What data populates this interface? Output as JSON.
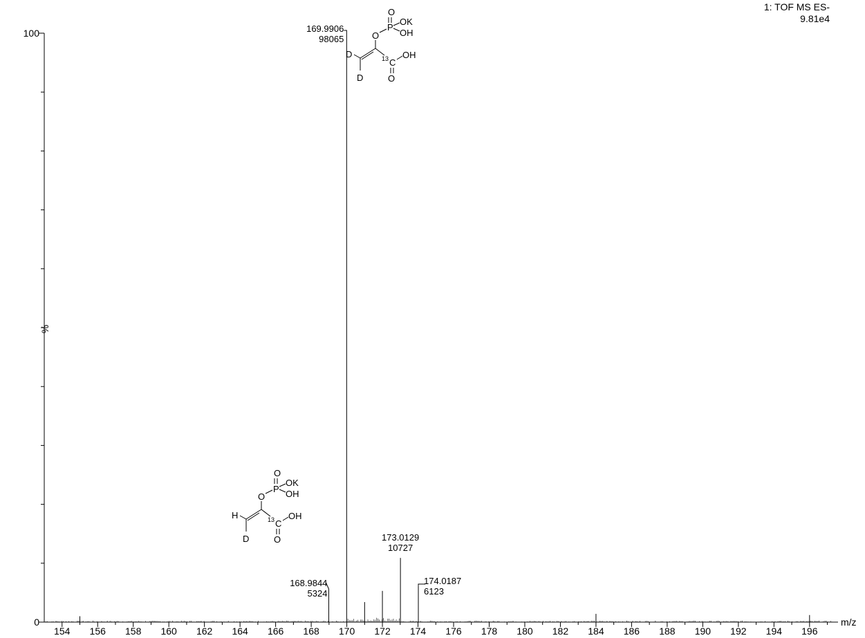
{
  "chart_data": {
    "type": "line",
    "title": "1: TOF MS ES-",
    "subtitle": "9.81e4",
    "xlabel": "m/z",
    "ylabel": "%",
    "xlim": [
      153.0,
      197.6
    ],
    "ylim": [
      0,
      100
    ],
    "x_ticks": [
      154,
      156,
      158,
      160,
      162,
      164,
      166,
      168,
      170,
      172,
      174,
      176,
      178,
      180,
      182,
      184,
      186,
      188,
      190,
      192,
      194,
      196
    ],
    "y_ticks": [
      "0",
      "100"
    ],
    "grid": false,
    "legend": "none",
    "peaks": [
      {
        "mz": 168.9844,
        "rel": 5.4,
        "label_mz": "168.9844",
        "label_int": "5324"
      },
      {
        "mz": 169.9906,
        "rel": 100,
        "label_mz": "169.9906",
        "label_int": "98065"
      },
      {
        "mz": 171.0,
        "rel": 3.4
      },
      {
        "mz": 172.0,
        "rel": 5.3
      },
      {
        "mz": 173.0129,
        "rel": 10.9,
        "label_mz": "173.0129",
        "label_int": "10727"
      },
      {
        "mz": 174.0187,
        "rel": 6.2,
        "label_mz": "174.0187",
        "label_int": "6123"
      },
      {
        "mz": 155.0,
        "rel": 1.0
      },
      {
        "mz": 184.0,
        "rel": 1.4
      },
      {
        "mz": 196.0,
        "rel": 1.2
      }
    ]
  },
  "structures": {
    "top": {
      "o_top": "O",
      "ok": "OK",
      "o_left": "O",
      "p": "P",
      "oh_p": "OH",
      "d1": "D",
      "c13": "13",
      "c": "C",
      "oh_c": "OH",
      "o_bottom": "O",
      "d2": "D"
    },
    "bottom": {
      "o_top": "O",
      "ok": "OK",
      "o_left": "O",
      "p": "P",
      "oh_p": "OH",
      "h": "H",
      "c13": "13",
      "c": "C",
      "oh_c": "OH",
      "o_bottom": "O",
      "d": "D"
    }
  }
}
